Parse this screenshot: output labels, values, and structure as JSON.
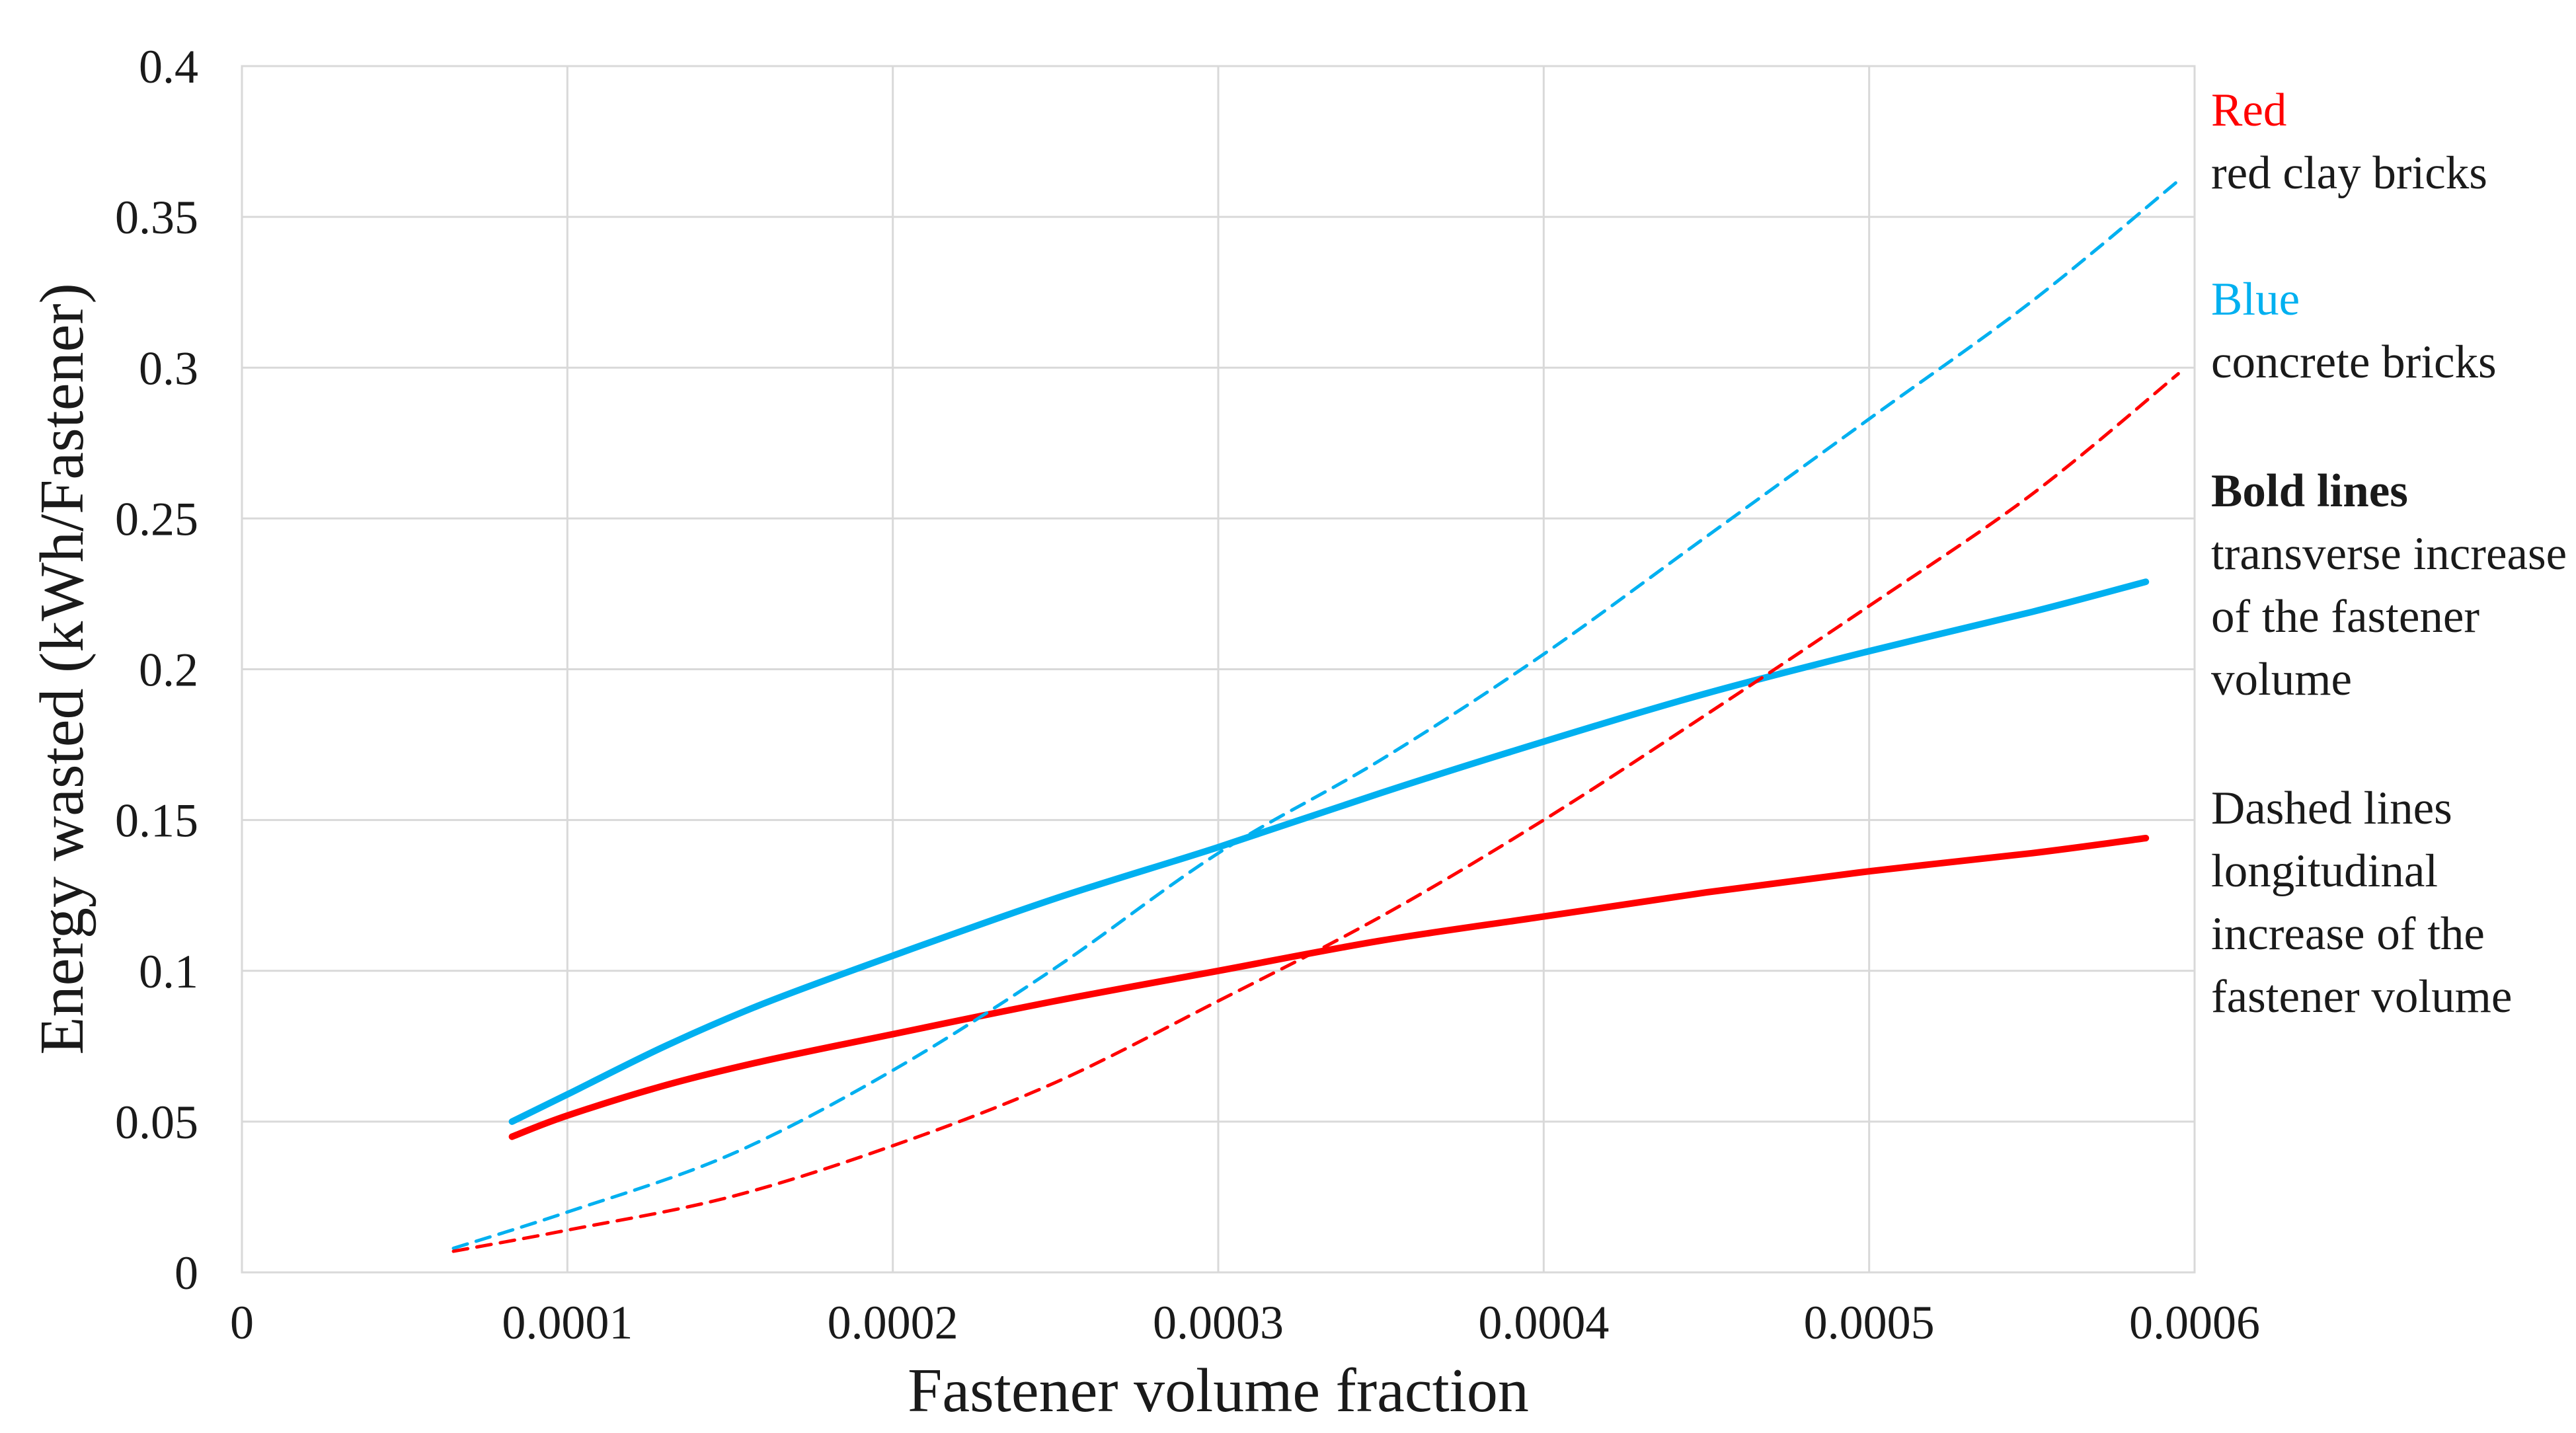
{
  "chart_data": {
    "type": "line",
    "title": "",
    "xlabel": "Fastener volume fraction",
    "ylabel": "Energy wasted (kWh/Fastener)",
    "xlim": [
      0,
      0.0006
    ],
    "ylim": [
      0,
      0.4
    ],
    "x_ticks": [
      "0",
      "0.0001",
      "0.0002",
      "0.0003",
      "0.0004",
      "0.0005",
      "0.0006"
    ],
    "y_ticks": [
      "0",
      "0.05",
      "0.1",
      "0.15",
      "0.2",
      "0.25",
      "0.3",
      "0.35",
      "0.4"
    ],
    "grid": true,
    "colors": {
      "red": "#ff0000",
      "blue": "#00b0f0"
    },
    "series": [
      {
        "material": "concrete bricks",
        "color": "#00b0f0",
        "style": "solid",
        "x": [
          8.3e-05,
          0.0001,
          0.00013,
          0.00016,
          0.0002,
          0.00025,
          0.0003,
          0.00035,
          0.0004,
          0.00045,
          0.0005,
          0.00055,
          0.000585
        ],
        "y": [
          0.05,
          0.059,
          0.075,
          0.089,
          0.105,
          0.124,
          0.141,
          0.159,
          0.176,
          0.192,
          0.206,
          0.219,
          0.229
        ]
      },
      {
        "material": "red clay bricks",
        "color": "#ff0000",
        "style": "solid",
        "x": [
          8.3e-05,
          0.0001,
          0.00013,
          0.00016,
          0.0002,
          0.00025,
          0.0003,
          0.00035,
          0.0004,
          0.00045,
          0.0005,
          0.00055,
          0.000585
        ],
        "y": [
          0.045,
          0.052,
          0.062,
          0.07,
          0.079,
          0.09,
          0.1,
          0.11,
          0.118,
          0.126,
          0.133,
          0.139,
          0.144
        ]
      },
      {
        "material": "concrete bricks",
        "color": "#00b0f0",
        "style": "dashed",
        "x": [
          6.5e-05,
          0.0001,
          0.00015,
          0.0002,
          0.00025,
          0.0003,
          0.00035,
          0.0004,
          0.00045,
          0.0005,
          0.00055,
          0.000595
        ],
        "y": [
          0.008,
          0.02,
          0.039,
          0.067,
          0.101,
          0.139,
          0.17,
          0.205,
          0.244,
          0.283,
          0.322,
          0.362
        ]
      },
      {
        "material": "red clay bricks",
        "color": "#ff0000",
        "style": "dashed",
        "x": [
          6.5e-05,
          0.0001,
          0.00015,
          0.0002,
          0.00025,
          0.0003,
          0.00035,
          0.0004,
          0.00045,
          0.0005,
          0.00055,
          0.000595
        ],
        "y": [
          0.007,
          0.014,
          0.025,
          0.042,
          0.063,
          0.09,
          0.118,
          0.15,
          0.185,
          0.221,
          0.258,
          0.298
        ]
      }
    ],
    "legend_text": {
      "red_label": "Red",
      "red_desc": "red clay bricks",
      "blue_label": "Blue",
      "blue_desc": "concrete bricks",
      "bold_label": "Bold lines",
      "bold_desc": "transverse increase of the fastener volume",
      "dashed_label": "Dashed lines",
      "dashed_desc": "longitudinal increase of the fastener volume"
    },
    "legend_position": "right"
  }
}
